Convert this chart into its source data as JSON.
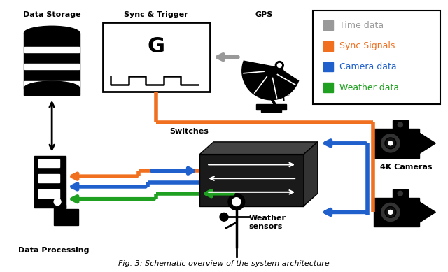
{
  "title": "Fig. 3: Schematic overview of the system architecture",
  "background_color": "#ffffff",
  "legend_items": [
    {
      "label": "Time data",
      "color": "#999999"
    },
    {
      "label": "Sync Signals",
      "color": "#f07020"
    },
    {
      "label": "Camera data",
      "color": "#2060cc"
    },
    {
      "label": "Weather data",
      "color": "#20a020"
    }
  ],
  "colors": {
    "orange": "#f07020",
    "blue": "#2060cc",
    "green": "#20a020",
    "gray": "#999999",
    "black": "#000000",
    "white": "#ffffff",
    "dark": "#1a1a1a"
  },
  "lw": 4.0
}
